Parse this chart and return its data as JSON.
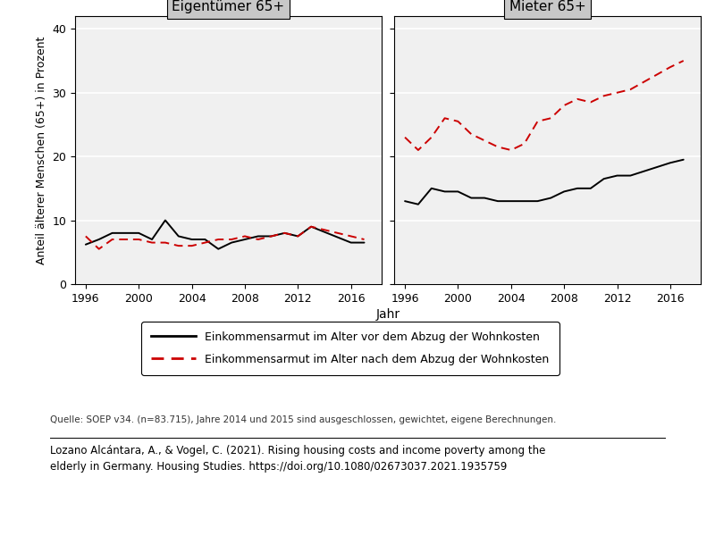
{
  "years_eigen": [
    1996,
    1997,
    1998,
    1999,
    2000,
    2001,
    2002,
    2003,
    2004,
    2005,
    2006,
    2007,
    2008,
    2009,
    2010,
    2011,
    2012,
    2013,
    2016,
    2017
  ],
  "eigen_black": [
    6.2,
    7.0,
    8.0,
    8.0,
    8.0,
    7.0,
    10.0,
    7.5,
    7.0,
    7.0,
    5.5,
    6.5,
    7.0,
    7.5,
    7.5,
    8.0,
    7.5,
    9.0,
    6.5,
    6.5
  ],
  "eigen_red": [
    7.5,
    5.5,
    7.0,
    7.0,
    7.0,
    6.5,
    6.5,
    6.0,
    6.0,
    6.5,
    7.0,
    7.0,
    7.5,
    7.0,
    7.5,
    8.0,
    7.5,
    9.0,
    7.5,
    7.0
  ],
  "years_mieter": [
    1996,
    1997,
    1998,
    1999,
    2000,
    2001,
    2002,
    2003,
    2004,
    2005,
    2006,
    2007,
    2008,
    2009,
    2010,
    2011,
    2012,
    2013,
    2016,
    2017
  ],
  "mieter_black": [
    13.0,
    12.5,
    15.0,
    14.5,
    14.5,
    13.5,
    13.5,
    13.0,
    13.0,
    13.0,
    13.0,
    13.5,
    14.5,
    15.0,
    15.0,
    16.5,
    17.0,
    17.0,
    19.0,
    19.5
  ],
  "mieter_red": [
    23.0,
    21.0,
    23.0,
    26.0,
    25.5,
    23.5,
    22.5,
    21.5,
    21.0,
    22.0,
    25.5,
    26.0,
    28.0,
    29.0,
    28.5,
    29.5,
    30.0,
    30.5,
    34.0,
    35.0
  ],
  "title_left": "Eigentümer 65+",
  "title_right": "Mieter 65+",
  "ylabel": "Anteil älterer Menschen (65+) in Prozent",
  "xlabel": "Jahr",
  "ylim": [
    0,
    42
  ],
  "yticks": [
    0,
    10,
    20,
    30,
    40
  ],
  "xticks": [
    1996,
    2000,
    2004,
    2008,
    2012,
    2016
  ],
  "legend_black": "Einkommensarmut im Alter vor dem Abzug der Wohnkosten",
  "legend_red": "Einkommensarmut im Alter nach dem Abzug der Wohnkosten",
  "source_text": "Quelle: SOEP v34. (n=83.715), Jahre 2014 und 2015 sind ausgeschlossen, gewichtet, eigene Berechnungen.",
  "citation_line1": "Lozano Alcántara, A., & Vogel, C. (2021). Rising housing costs and income poverty among the",
  "citation_line2": "elderly in Germany. Housing Studies. https://doi.org/10.1080/02673037.2021.1935759",
  "panel_bg": "#c8c8c8",
  "plot_bg": "#f0f0f0",
  "grid_color": "#ffffff",
  "black_color": "#000000",
  "red_color": "#cc0000",
  "fig_bg": "#ffffff"
}
